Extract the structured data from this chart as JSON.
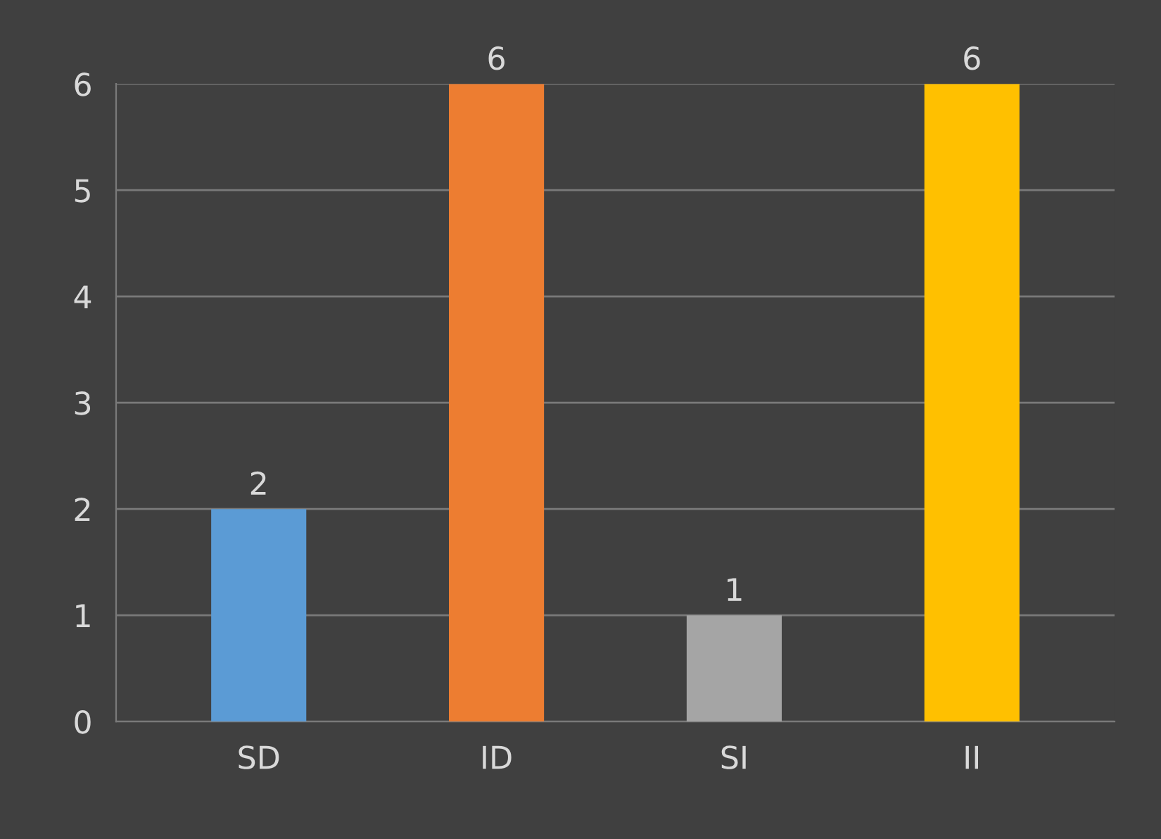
{
  "chart_data": {
    "type": "bar",
    "categories": [
      "SD",
      "ID",
      "SI",
      "II"
    ],
    "values": [
      2,
      6,
      1,
      6
    ],
    "colors": [
      "#5b9bd5",
      "#ed7d31",
      "#a5a5a5",
      "#ffc000"
    ],
    "ylim": [
      0,
      6
    ],
    "yticks": [
      0,
      1,
      2,
      3,
      4,
      5,
      6
    ],
    "grid": "y",
    "data_labels": true
  }
}
